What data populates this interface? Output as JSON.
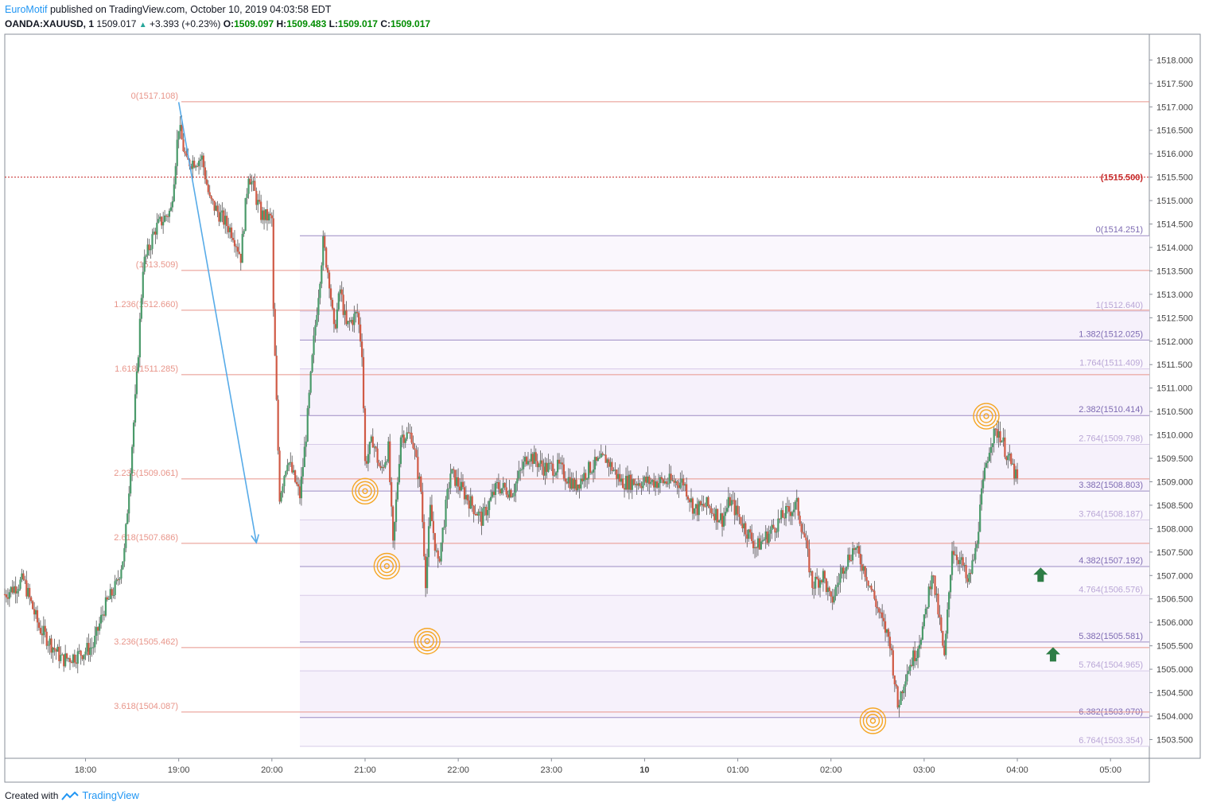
{
  "header": {
    "author": "EuroMotif",
    "published_text": " published on TradingView.com, October 10, 2019 04:03:58 EDT"
  },
  "quote": {
    "symbol": "OANDA:XAUUSD, 1",
    "last": "1509.017",
    "change": "+3.393 (+0.23%)",
    "open_label": "O:",
    "open": "1509.097",
    "high_label": "H:",
    "high": "1509.483",
    "low_label": "L:",
    "low": "1509.017",
    "close_label": "C:",
    "close": "1509.017"
  },
  "footer": {
    "created_with": "Created with",
    "brand": "TradingView"
  },
  "colors": {
    "up": "#4a9a6a",
    "down": "#d05a45",
    "fib_left": "#e8958a",
    "fib_right": "#b9a6d6",
    "arrow": "#57abe8",
    "marker": "#f5a623",
    "green_arrow": "#2e7d46",
    "hline": "#c62828"
  },
  "chart_data": {
    "type": "candlestick",
    "symbol": "OANDA:XAUUSD",
    "interval": "1",
    "x_tick_labels": [
      "18:00",
      "19:00",
      "20:00",
      "21:00",
      "22:00",
      "23:00",
      "10",
      "01:00",
      "02:00",
      "03:00",
      "04:00",
      "05:00"
    ],
    "y_tick_labels": [
      "1518.000",
      "1517.500",
      "1517.000",
      "1516.500",
      "1516.000",
      "1515.500",
      "1515.000",
      "1514.500",
      "1514.000",
      "1513.500",
      "1513.000",
      "1512.500",
      "1512.000",
      "1511.500",
      "1511.000",
      "1510.500",
      "1510.000",
      "1509.500",
      "1509.000",
      "1508.500",
      "1508.000",
      "1507.500",
      "1507.000",
      "1506.500",
      "1506.000",
      "1505.500",
      "1505.000",
      "1504.500",
      "1504.000",
      "1503.500"
    ],
    "ylim": [
      1503.1,
      1518.55
    ],
    "price_path": [
      [
        "17:08",
        1506.6
      ],
      [
        "17:20",
        1506.9
      ],
      [
        "17:30",
        1505.9
      ],
      [
        "17:45",
        1505.2
      ],
      [
        "17:55",
        1505.3
      ],
      [
        "18:05",
        1505.5
      ],
      [
        "18:12",
        1506.3
      ],
      [
        "18:20",
        1506.8
      ],
      [
        "18:25",
        1507.5
      ],
      [
        "18:30",
        1509.8
      ],
      [
        "18:33",
        1511.2
      ],
      [
        "18:37",
        1513.6
      ],
      [
        "18:45",
        1514.4
      ],
      [
        "18:55",
        1514.8
      ],
      [
        "19:00",
        1516.6
      ],
      [
        "19:05",
        1515.8
      ],
      [
        "19:15",
        1515.9
      ],
      [
        "19:20",
        1515.0
      ],
      [
        "19:35",
        1514.3
      ],
      [
        "19:40",
        1513.8
      ],
      [
        "19:45",
        1515.6
      ],
      [
        "19:53",
        1514.7
      ],
      [
        "20:00",
        1514.6
      ],
      [
        "20:01",
        1512.6
      ],
      [
        "20:05",
        1508.7
      ],
      [
        "20:10",
        1509.5
      ],
      [
        "20:18",
        1508.7
      ],
      [
        "20:22",
        1510.0
      ],
      [
        "20:27",
        1512.0
      ],
      [
        "20:33",
        1514.1
      ],
      [
        "20:37",
        1513.3
      ],
      [
        "20:40",
        1512.2
      ],
      [
        "20:44",
        1513.1
      ],
      [
        "20:48",
        1512.3
      ],
      [
        "20:55",
        1512.6
      ],
      [
        "20:58",
        1511.8
      ],
      [
        "21:00",
        1509.4
      ],
      [
        "21:05",
        1509.9
      ],
      [
        "21:10",
        1509.2
      ],
      [
        "21:15",
        1509.7
      ],
      [
        "21:18",
        1507.6
      ],
      [
        "21:23",
        1510.0
      ],
      [
        "21:30",
        1510.0
      ],
      [
        "21:36",
        1508.8
      ],
      [
        "21:39",
        1506.9
      ],
      [
        "21:42",
        1508.4
      ],
      [
        "21:47",
        1507.2
      ],
      [
        "21:55",
        1509.2
      ],
      [
        "22:05",
        1508.7
      ],
      [
        "22:15",
        1508.2
      ],
      [
        "22:25",
        1508.9
      ],
      [
        "22:35",
        1508.8
      ],
      [
        "22:45",
        1509.6
      ],
      [
        "22:55",
        1509.3
      ],
      [
        "23:05",
        1509.3
      ],
      [
        "23:15",
        1508.9
      ],
      [
        "23:25",
        1509.3
      ],
      [
        "23:35",
        1509.5
      ],
      [
        "23:45",
        1509.0
      ],
      [
        "23:55",
        1509.0
      ],
      [
        "00:05",
        1509.0
      ],
      [
        "00:15",
        1509.0
      ],
      [
        "00:25",
        1509.0
      ],
      [
        "00:32",
        1508.4
      ],
      [
        "00:40",
        1508.5
      ],
      [
        "00:50",
        1508.2
      ],
      [
        "00:55",
        1508.6
      ],
      [
        "01:05",
        1508.0
      ],
      [
        "01:12",
        1507.6
      ],
      [
        "01:20",
        1507.9
      ],
      [
        "01:30",
        1508.3
      ],
      [
        "01:38",
        1508.5
      ],
      [
        "01:43",
        1507.8
      ],
      [
        "01:48",
        1506.8
      ],
      [
        "01:55",
        1507.0
      ],
      [
        "02:00",
        1506.4
      ],
      [
        "02:08",
        1507.2
      ],
      [
        "02:15",
        1507.6
      ],
      [
        "02:22",
        1507.1
      ],
      [
        "02:28",
        1506.5
      ],
      [
        "02:33",
        1506.0
      ],
      [
        "02:38",
        1505.6
      ],
      [
        "02:43",
        1504.2
      ],
      [
        "02:48",
        1504.9
      ],
      [
        "02:55",
        1505.4
      ],
      [
        "03:00",
        1506.0
      ],
      [
        "03:05",
        1507.1
      ],
      [
        "03:10",
        1506.0
      ],
      [
        "03:13",
        1505.2
      ],
      [
        "03:18",
        1507.6
      ],
      [
        "03:25",
        1507.2
      ],
      [
        "03:28",
        1506.8
      ],
      [
        "03:33",
        1507.5
      ],
      [
        "03:37",
        1508.7
      ],
      [
        "03:40",
        1509.4
      ],
      [
        "03:43",
        1509.9
      ],
      [
        "03:48",
        1510.1
      ],
      [
        "03:53",
        1509.6
      ],
      [
        "03:58",
        1509.2
      ],
      [
        "04:00",
        1509.0
      ]
    ],
    "horizontal_line": {
      "price": 1515.5,
      "label": "(1515.500)"
    },
    "fib_extension_left": {
      "levels": [
        {
          "label": "0(1517.108)",
          "price": 1517.108
        },
        {
          "label": "(1513.509)",
          "price": 1513.509
        },
        {
          "label": "1.236(1512.660)",
          "price": 1512.66
        },
        {
          "label": "1.618(1511.285)",
          "price": 1511.285
        },
        {
          "label": "2.236(1509.061)",
          "price": 1509.061
        },
        {
          "label": "2.618(1507.686)",
          "price": 1507.686
        },
        {
          "label": "3.236(1505.462)",
          "price": 1505.462
        },
        {
          "label": "3.618(1504.087)",
          "price": 1504.087
        }
      ]
    },
    "fib_extension_right": {
      "levels": [
        {
          "label": "0(1514.251)",
          "price": 1514.251
        },
        {
          "label": "1(1512.640)",
          "price": 1512.64
        },
        {
          "label": "1.382(1512.025)",
          "price": 1512.025
        },
        {
          "label": "1.764(1511.409)",
          "price": 1511.409
        },
        {
          "label": "2.382(1510.414)",
          "price": 1510.414
        },
        {
          "label": "2.764(1509.798)",
          "price": 1509.798
        },
        {
          "label": "3.382(1508.803)",
          "price": 1508.803
        },
        {
          "label": "3.764(1508.187)",
          "price": 1508.187
        },
        {
          "label": "4.382(1507.192)",
          "price": 1507.192
        },
        {
          "label": "4.764(1506.576)",
          "price": 1506.576
        },
        {
          "label": "5.382(1505.581)",
          "price": 1505.581
        },
        {
          "label": "5.764(1504.965)",
          "price": 1504.965
        },
        {
          "label": "6.382(1503.970)",
          "price": 1503.97
        },
        {
          "label": "6.764(1503.354)",
          "price": 1503.354
        }
      ]
    },
    "trend_arrow": {
      "from": [
        "19:00",
        1517.1
      ],
      "to": [
        "19:50",
        1507.7
      ]
    },
    "circle_markers": [
      {
        "time": "21:00",
        "price": 1508.8
      },
      {
        "time": "21:14",
        "price": 1507.2
      },
      {
        "time": "21:40",
        "price": 1505.6
      },
      {
        "time": "02:27",
        "price": 1503.9
      },
      {
        "time": "03:40",
        "price": 1510.4
      }
    ],
    "up_arrows": [
      {
        "time": "04:15",
        "price": 1507.0
      },
      {
        "time": "04:23",
        "price": 1505.3
      }
    ]
  }
}
